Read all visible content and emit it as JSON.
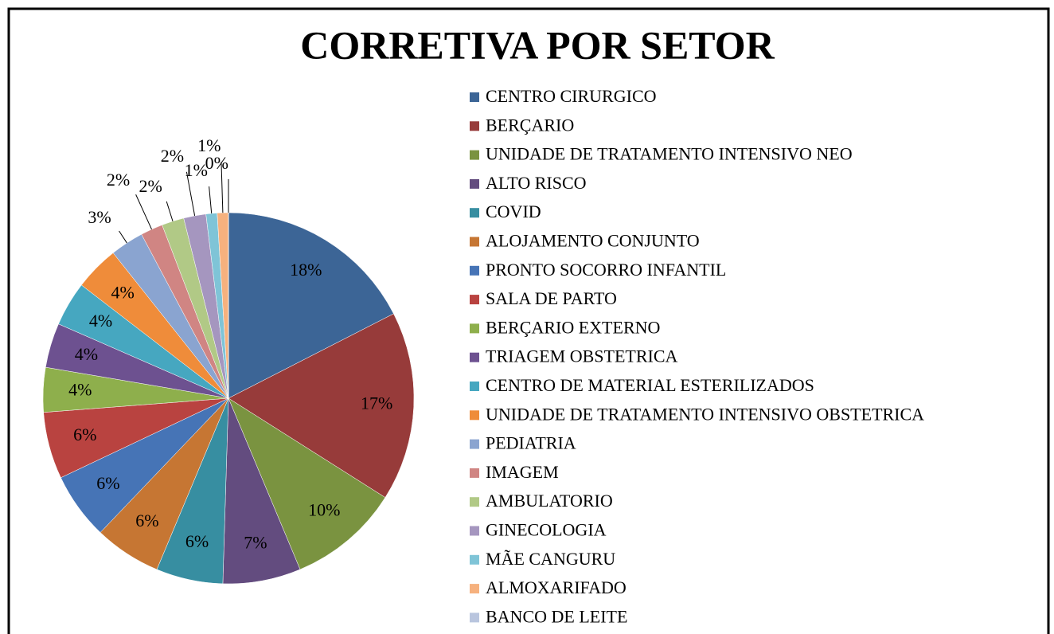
{
  "chart_data": {
    "type": "pie",
    "title": "CORRETIVA POR SETOR",
    "categories": [
      "CENTRO CIRURGICO",
      "BERÇARIO",
      "UNIDADE DE TRATAMENTO INTENSIVO NEO",
      "ALTO RISCO",
      "COVID",
      "ALOJAMENTO CONJUNTO",
      " PRONTO SOCORRO INFANTIL",
      "SALA DE PARTO",
      "BERÇARIO EXTERNO",
      "TRIAGEM OBSTETRICA",
      "CENTRO DE MATERIAL ESTERILIZADOS",
      "UNIDADE DE TRATAMENTO INTENSIVO OBSTETRICA",
      "PEDIATRIA",
      "IMAGEM",
      "AMBULATORIO",
      "GINECOLOGIA",
      "MÃE CANGURU",
      "ALMOXARIFADO",
      "BANCO DE LEITE"
    ],
    "values": [
      18,
      17,
      10,
      7,
      6,
      6,
      6,
      6,
      4,
      4,
      4,
      4,
      3,
      2,
      2,
      2,
      1,
      1,
      0
    ],
    "value_labels": [
      "18%",
      "17%",
      "10%",
      "7%",
      "6%",
      "6%",
      "6%",
      "6%",
      "4%",
      "4%",
      "4%",
      "4%",
      "3%",
      "2%",
      "2%",
      "2%",
      "1%",
      "1%",
      "0%"
    ],
    "colors": [
      "#3c6596",
      "#973b3a",
      "#7a9340",
      "#634c7f",
      "#378ea1",
      "#c67633",
      "#4674b6",
      "#b94340",
      "#8eaf4c",
      "#6d5190",
      "#46a7c0",
      "#ef8c3a",
      "#8aa4d0",
      "#d08583",
      "#b1c986",
      "#a596bf",
      "#7fc4d7",
      "#f6b17e",
      "#b9c5de"
    ],
    "legend": "right"
  }
}
